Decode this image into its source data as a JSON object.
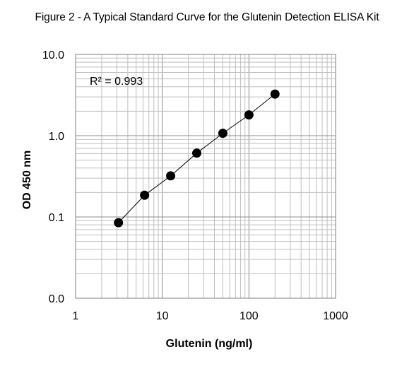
{
  "title": "Figure 2 - A Typical Standard Curve for the Glutenin Detection ELISA Kit",
  "chart_data": {
    "type": "scatter",
    "title": "Figure 2 - A Typical Standard Curve for the Glutenin Detection ELISA Kit",
    "xlabel": "Glutenin (ng/ml)",
    "ylabel": "OD 450 nm",
    "x_scale": "log",
    "y_scale": "log",
    "xlim": [
      1,
      1000
    ],
    "ylim": [
      0.01,
      10
    ],
    "x_ticks": [
      1,
      10,
      100,
      1000
    ],
    "x_tick_labels": [
      "1",
      "10",
      "100",
      "1000"
    ],
    "y_ticks": [
      0.01,
      0.1,
      1,
      10
    ],
    "y_tick_labels": [
      "0.0",
      "0.1",
      "1.0",
      "10.0"
    ],
    "grid": true,
    "series": [
      {
        "x": [
          3.125,
          6.25,
          12.5,
          25,
          50,
          100,
          200
        ],
        "y": [
          0.085,
          0.185,
          0.32,
          0.61,
          1.07,
          1.8,
          3.25
        ],
        "marker_color": "#000000",
        "trendline": true
      }
    ],
    "annotation": "R² = 0.993"
  }
}
